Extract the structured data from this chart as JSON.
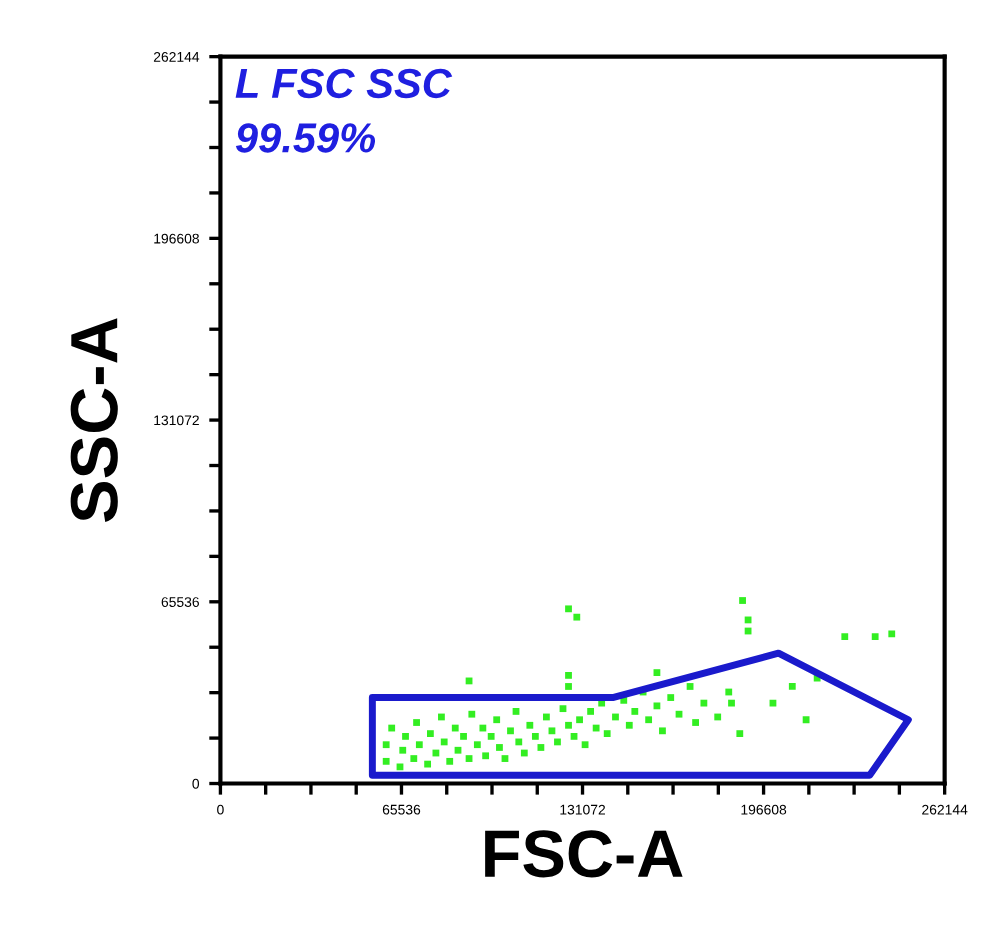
{
  "chart_data": {
    "type": "scatter",
    "xlabel": "FSC-A",
    "ylabel": "SSC-A",
    "annotations": [
      "L FSC SSC",
      "99.59%"
    ],
    "xlim": [
      0,
      262144
    ],
    "ylim": [
      0,
      262144
    ],
    "xticks": [
      0,
      {
        "value": 16384,
        "label": null
      },
      {
        "value": 32768,
        "label": null
      },
      {
        "value": 49152,
        "label": null
      },
      65536,
      {
        "value": 81920,
        "label": null
      },
      {
        "value": 98304,
        "label": null
      },
      {
        "value": 114688,
        "label": null
      },
      131072,
      {
        "value": 147456,
        "label": null
      },
      {
        "value": 163840,
        "label": null
      },
      {
        "value": 180224,
        "label": null
      },
      196608,
      {
        "value": 212992,
        "label": null
      },
      {
        "value": 229376,
        "label": null
      },
      {
        "value": 245760,
        "label": null
      },
      262144
    ],
    "yticks": [
      0,
      {
        "value": 16384,
        "label": null
      },
      {
        "value": 32768,
        "label": null
      },
      {
        "value": 49152,
        "label": null
      },
      65536,
      {
        "value": 81920,
        "label": null
      },
      {
        "value": 98304,
        "label": null
      },
      {
        "value": 114688,
        "label": null
      },
      131072,
      {
        "value": 147456,
        "label": null
      },
      {
        "value": 163840,
        "label": null
      },
      {
        "value": 180224,
        "label": null
      },
      196608,
      {
        "value": 212992,
        "label": null
      },
      {
        "value": 229376,
        "label": null
      },
      {
        "value": 245760,
        "label": null
      },
      262144
    ],
    "grid": false,
    "legend": false,
    "series": [
      {
        "color": "#33ee22",
        "marker": "square",
        "x": [
          60000,
          60000,
          62000,
          65000,
          66000,
          67000,
          70000,
          71000,
          72000,
          75000,
          76000,
          78000,
          80000,
          81000,
          83000,
          85000,
          86000,
          88000,
          90000,
          91000,
          93000,
          95000,
          96000,
          98000,
          100000,
          101000,
          103000,
          105000,
          107000,
          108000,
          110000,
          112000,
          114000,
          116000,
          118000,
          120000,
          122000,
          124000,
          126000,
          128000,
          130000,
          132000,
          134000,
          136000,
          138000,
          140000,
          143000,
          146000,
          148000,
          150000,
          153000,
          155000,
          158000,
          160000,
          163000,
          166000,
          170000,
          172000,
          175000,
          180000,
          184000,
          188000,
          90000,
          126000,
          126000,
          158000,
          207000,
          200000,
          212000,
          185000,
          216000,
          126000,
          129000,
          189000,
          191000,
          191000,
          226000,
          237000,
          243000
        ],
        "values": [
          8000,
          14000,
          20000,
          6000,
          12000,
          17000,
          9000,
          22000,
          14000,
          7000,
          18000,
          11000,
          24000,
          15000,
          8000,
          20000,
          12000,
          17000,
          9000,
          25000,
          14000,
          20000,
          10000,
          17000,
          23000,
          13000,
          9000,
          19000,
          26000,
          15000,
          11000,
          21000,
          17000,
          13000,
          24000,
          19000,
          15000,
          27000,
          21000,
          17000,
          23000,
          14000,
          26000,
          20000,
          29000,
          18000,
          24000,
          30000,
          21000,
          26000,
          33000,
          23000,
          28000,
          19000,
          31000,
          25000,
          35000,
          22000,
          29000,
          24000,
          33000,
          18000,
          37000,
          39000,
          35000,
          40000,
          35000,
          29000,
          23000,
          29000,
          38000,
          63000,
          60000,
          66000,
          59000,
          55000,
          53000,
          53000,
          54000
        ]
      }
    ]
  }
}
